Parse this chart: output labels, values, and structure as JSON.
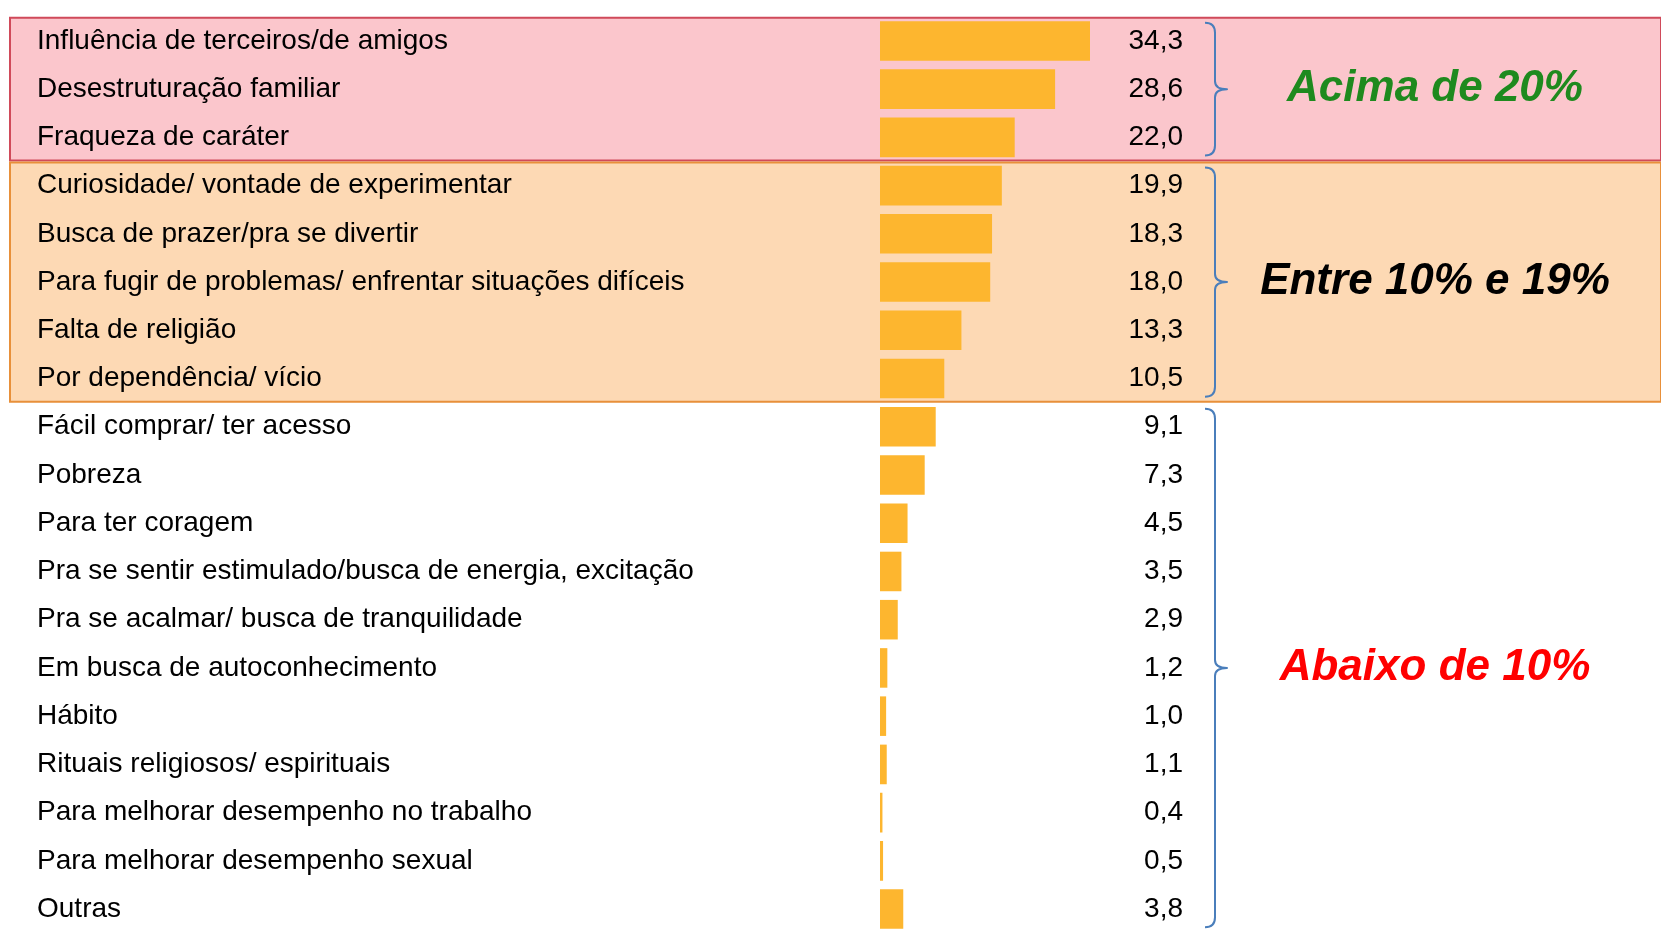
{
  "chart_data": {
    "type": "bar",
    "orientation": "horizontal",
    "categories": [
      "Influência de terceiros/de amigos",
      "Desestruturação familiar",
      "Fraqueza de caráter",
      "Curiosidade/ vontade de experimentar",
      "Busca de prazer/pra se divertir",
      "Para fugir de problemas/ enfrentar situações difíceis",
      "Falta de religião",
      "Por dependência/ vício",
      "Fácil comprar/ ter acesso",
      "Pobreza",
      "Para ter coragem",
      "Pra se sentir estimulado/busca de energia, excitação",
      "Pra se acalmar/ busca de tranquilidade",
      "Em busca de autoconhecimento",
      "Hábito",
      "Rituais religiosos/ espirituais",
      "Para melhorar desempenho no trabalho",
      "Para melhorar desempenho sexual",
      "Outras"
    ],
    "values": [
      34.3,
      28.6,
      22.0,
      19.9,
      18.3,
      18.0,
      13.3,
      10.5,
      9.1,
      7.3,
      4.5,
      3.5,
      2.9,
      1.2,
      1.0,
      1.1,
      0.4,
      0.5,
      3.8
    ],
    "value_labels": [
      "34,3",
      "28,6",
      "22,0",
      "19,9",
      "18,3",
      "18,0",
      "13,3",
      "10,5",
      "9,1",
      "7,3",
      "4,5",
      "3,5",
      "2,9",
      "1,2",
      "1,0",
      "1,1",
      "0,4",
      "0,5",
      "3,8"
    ],
    "color": "#fdb62f",
    "bands": [
      {
        "axis": "y",
        "from": "Influência de terceiros/de amigos",
        "to": "Fraqueza de caráter",
        "label": "Acima de 20%",
        "color": "#fbc6cc"
      },
      {
        "axis": "y",
        "from": "Curiosidade/ vontade de experimentar",
        "to": "Por dependência/ vício",
        "label": "Entre 10% e 19%",
        "color": "#fdd9b4"
      }
    ],
    "annotations": [
      "Abaixo de 10%"
    ],
    "grid": false,
    "legend": false
  }
}
